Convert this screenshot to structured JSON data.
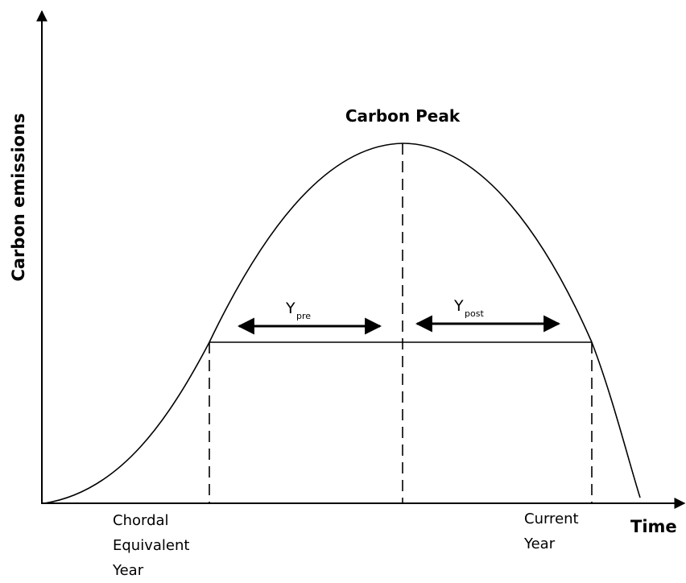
{
  "title": "Carbon Peak",
  "y_axis_label": "Carbon emissions",
  "x_axis_label": "Time",
  "pre_label": {
    "main": "Y",
    "sub": "pre"
  },
  "post_label": {
    "main": "Y",
    "sub": "post"
  },
  "left_year_label": [
    "Chordal",
    "Equivalent",
    "Year"
  ],
  "right_year_label": [
    "Current",
    "Year"
  ]
}
